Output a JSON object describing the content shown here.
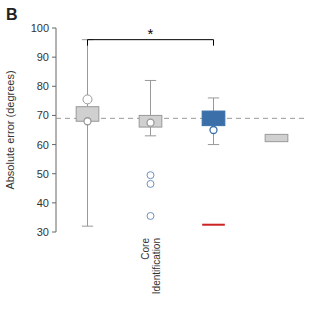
{
  "chart_data": {
    "type": "box",
    "title": "B",
    "y_label": "Absolute error (degrees)",
    "ylim": [
      30,
      100
    ],
    "yticks": [
      30,
      40,
      50,
      60,
      70,
      80,
      90,
      100
    ],
    "categories": [
      null,
      "Core\nIdentification",
      null,
      null
    ],
    "reference_line": 69,
    "boxes": [
      {
        "q1": 68,
        "q3": 73,
        "whisker_low": 32,
        "whisker_high": 96,
        "median": 68,
        "mean": 75.5,
        "color": "#d0d0d0"
      },
      {
        "q1": 66,
        "q3": 70,
        "whisker_low": 63,
        "whisker_high": 82,
        "median": 67.5,
        "color": "#d0d0d0",
        "outliers": {
          "values": [
            49.5,
            46.5,
            35.5
          ],
          "color": "#7090c0",
          "marker": "circle"
        }
      },
      {
        "q1": 66.5,
        "q3": 71.5,
        "whisker_low": 60,
        "whisker_high": 76,
        "median": 65,
        "color": "#3a6faa",
        "outliers": {
          "values": [
            32.5
          ],
          "color": "#cc2222",
          "marker": "dash"
        }
      },
      {
        "q1": 61,
        "q3": 63.5,
        "color": "#d0d0d0"
      }
    ],
    "annotations": [
      {
        "text": "*",
        "from": 0,
        "to": 2,
        "y": 96
      }
    ]
  }
}
